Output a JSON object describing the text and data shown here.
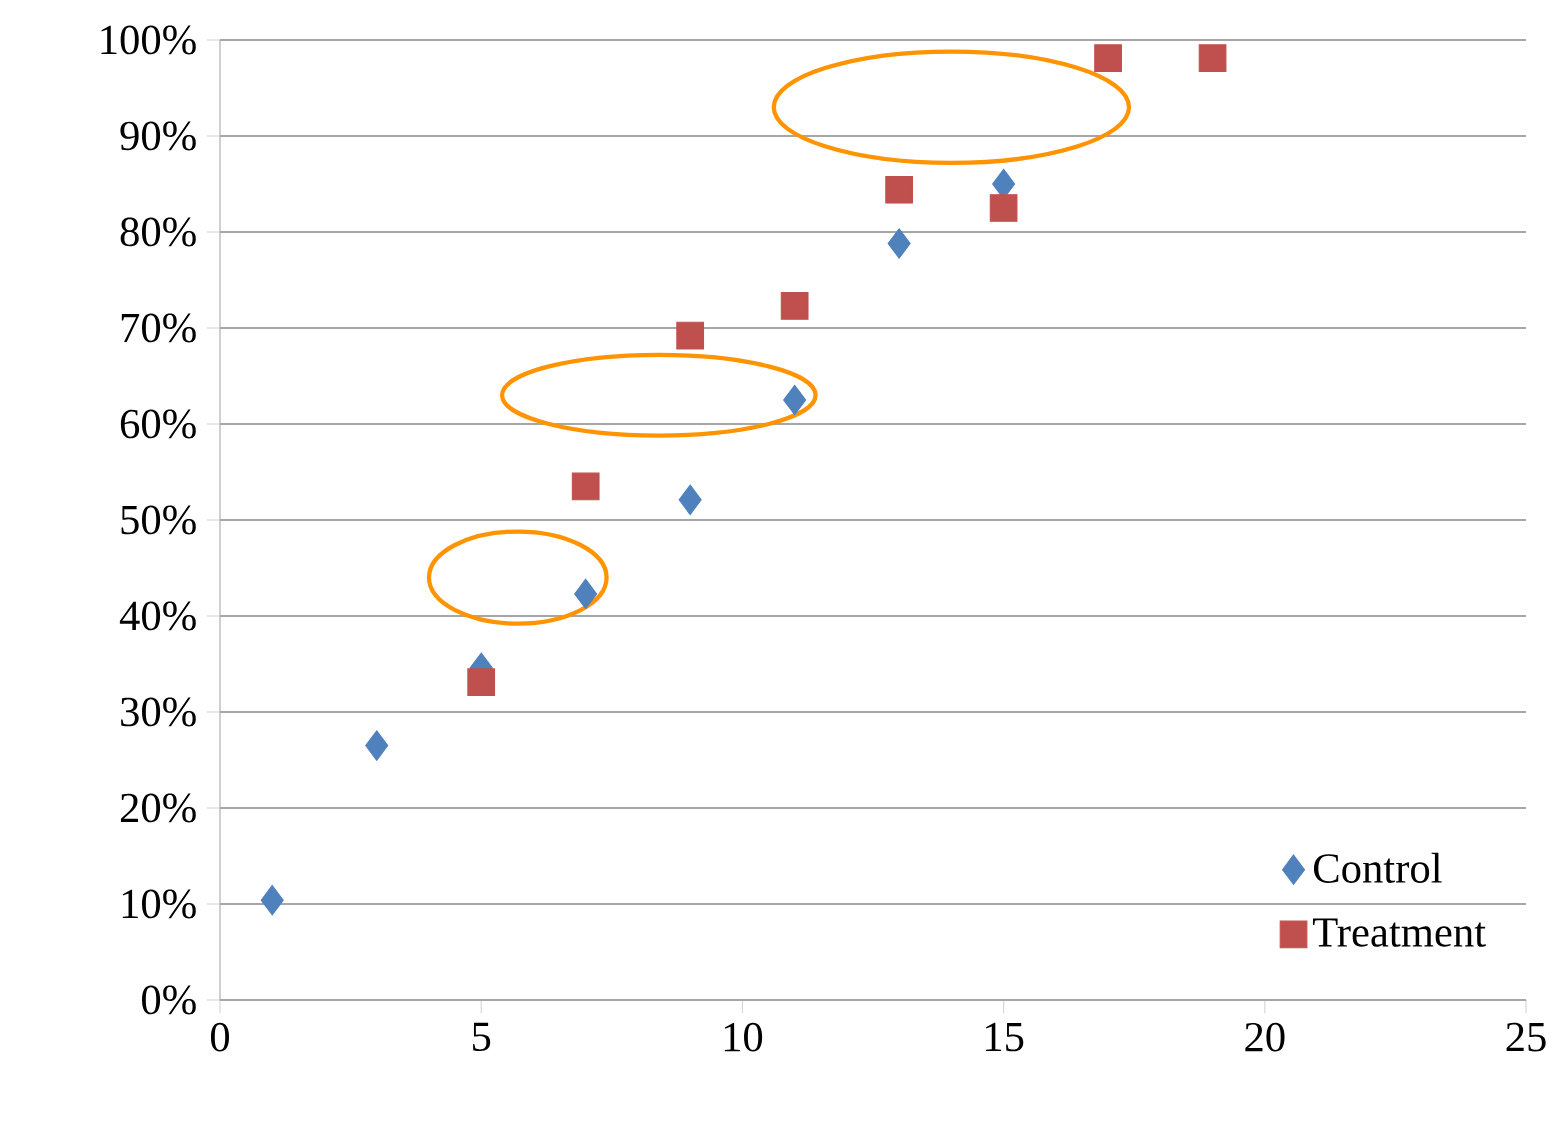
{
  "chart_data": {
    "type": "scatter",
    "series": [
      {
        "name": "Control",
        "color": "#4f81bd",
        "marker": "diamond",
        "x": [
          1,
          3,
          5,
          7,
          9,
          11,
          13,
          15
        ],
        "values": [
          10.4,
          26.5,
          34.6,
          42.3,
          52.1,
          62.5,
          78.8,
          85
        ]
      },
      {
        "name": "Treatment",
        "color": "#c0504d",
        "marker": "square",
        "x": [
          5,
          7,
          9,
          11,
          13,
          15,
          17,
          19
        ],
        "values": [
          33.1,
          53.5,
          69.2,
          72.3,
          84.4,
          82.5,
          98.1,
          98.1
        ]
      }
    ],
    "xlim": [
      0,
      25
    ],
    "xticks": [
      0,
      5,
      10,
      15,
      20,
      25
    ],
    "ylim": [
      0,
      100
    ],
    "yticks": [
      {
        "value": 0,
        "label": "0%"
      },
      {
        "value": 10,
        "label": "10%"
      },
      {
        "value": 20,
        "label": "20%"
      },
      {
        "value": 30,
        "label": "30%"
      },
      {
        "value": 40,
        "label": "40%"
      },
      {
        "value": 50,
        "label": "50%"
      },
      {
        "value": 60,
        "label": "60%"
      },
      {
        "value": 70,
        "label": "70%"
      },
      {
        "value": 80,
        "label": "80%"
      },
      {
        "value": 90,
        "label": "90%"
      },
      {
        "value": 100,
        "label": "100%"
      }
    ],
    "grid": "y",
    "legend": "bottom right"
  }
}
